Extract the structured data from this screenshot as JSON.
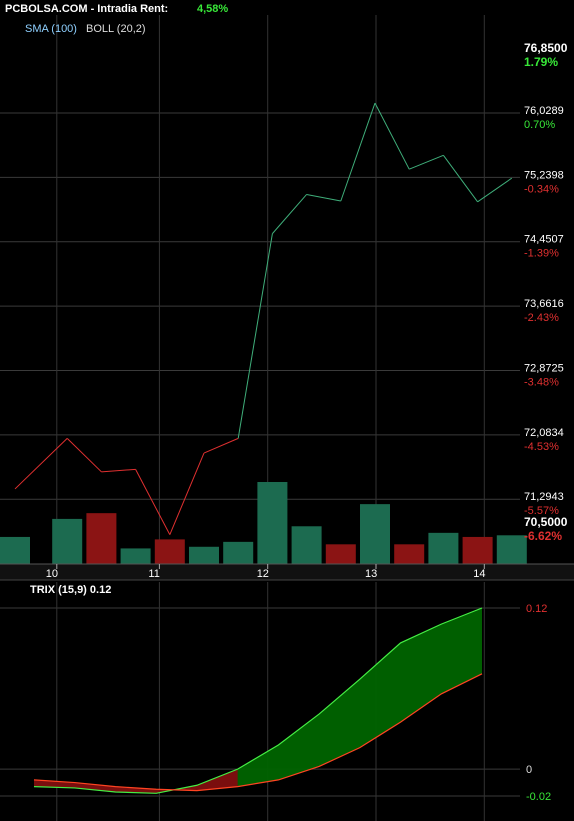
{
  "header": {
    "site": "PCBOLSA.COM",
    "mode": "Intradia",
    "rent_label": "Rent:",
    "rent_value": "4,58%"
  },
  "indicators": {
    "sma": "SMA (100)",
    "boll": "BOLL (20,2)"
  },
  "colors": {
    "up": "#2e8b57",
    "down": "#e03030",
    "bar_up": "#1c6b50",
    "bar_down": "#8b1414",
    "pct_up": "#38e838",
    "pct_down": "#e03030",
    "trix_fill": "#006400",
    "trix_line": "#44ee44",
    "trix_signal": "#ff4422"
  },
  "chart_data": [
    {
      "type": "line",
      "ylim": [
        70.5,
        76.85
      ],
      "price_ticks": [
        {
          "value": 76.85,
          "label": "76,8500",
          "pct": "1.79%"
        },
        {
          "value": 76.0289,
          "label": "76,0289",
          "pct": "0.70%"
        },
        {
          "value": 75.2398,
          "label": "75,2398",
          "pct": "-0.34%"
        },
        {
          "value": 74.4507,
          "label": "74,4507",
          "pct": "-1.39%"
        },
        {
          "value": 73.6616,
          "label": "73,6616",
          "pct": "-2.43%"
        },
        {
          "value": 72.8725,
          "label": "72,8725",
          "pct": "-3.48%"
        },
        {
          "value": 72.0834,
          "label": "72,0834",
          "pct": "-4.53%"
        },
        {
          "value": 71.2943,
          "label": "71,2943",
          "pct": "-5.57%"
        },
        {
          "value": 70.5,
          "label": "70,5000",
          "pct": "-6.62%"
        }
      ],
      "x_ticks": [
        {
          "label": "10",
          "i": 1.0
        },
        {
          "label": "11",
          "i": 5.5
        },
        {
          "label": "12",
          "i": 10.25
        },
        {
          "label": "13",
          "i": 15.0
        },
        {
          "label": "14",
          "i": 19.75
        }
      ],
      "series": [
        {
          "values": [
            71.42,
            72.04,
            71.63,
            71.66,
            70.86,
            71.86,
            72.04,
            74.55,
            75.03,
            74.95,
            76.15,
            75.34,
            75.51,
            74.94,
            75.23
          ]
        }
      ],
      "series_x": [
        0,
        1.5,
        3,
        4.5,
        6,
        7.5,
        9,
        10.5,
        12,
        13.5,
        15,
        16.5,
        18,
        19.5,
        21
      ],
      "volume": [
        {
          "i": 0,
          "v": 0.33,
          "up": true
        },
        {
          "i": 1.5,
          "v": 0.55,
          "up": true
        },
        {
          "i": 3,
          "v": 0.62,
          "up": false
        },
        {
          "i": 4.5,
          "v": 0.19,
          "up": true
        },
        {
          "i": 6,
          "v": 0.3,
          "up": false
        },
        {
          "i": 7.5,
          "v": 0.21,
          "up": true
        },
        {
          "i": 9,
          "v": 0.27,
          "up": true
        },
        {
          "i": 10.5,
          "v": 1.0,
          "up": true
        },
        {
          "i": 12,
          "v": 0.46,
          "up": true
        },
        {
          "i": 13.5,
          "v": 0.24,
          "up": false
        },
        {
          "i": 15,
          "v": 0.73,
          "up": true
        },
        {
          "i": 16.5,
          "v": 0.24,
          "up": false
        },
        {
          "i": 18,
          "v": 0.38,
          "up": true
        },
        {
          "i": 19.5,
          "v": 0.33,
          "up": false
        },
        {
          "i": 21,
          "v": 0.35,
          "up": true
        }
      ]
    },
    {
      "type": "area",
      "title": "TRIX (15,9) 0.12",
      "ylim": [
        -0.02,
        0.12
      ],
      "ticks": [
        {
          "value": 0.12,
          "label": "0.12",
          "color": "down"
        },
        {
          "value": 0,
          "label": "0",
          "color": "neutral"
        },
        {
          "value": -0.02,
          "label": "-0.02",
          "color": "up"
        }
      ],
      "series": [
        {
          "values": [
            -0.013,
            -0.014,
            -0.017,
            -0.018,
            -0.012,
            0.0,
            0.018,
            0.041,
            0.067,
            0.094,
            0.108,
            0.12
          ]
        },
        {
          "values": [
            -0.008,
            -0.01,
            -0.013,
            -0.015,
            -0.016,
            -0.013,
            -0.008,
            0.002,
            0.016,
            0.035,
            0.056,
            0.071
          ]
        }
      ]
    }
  ]
}
